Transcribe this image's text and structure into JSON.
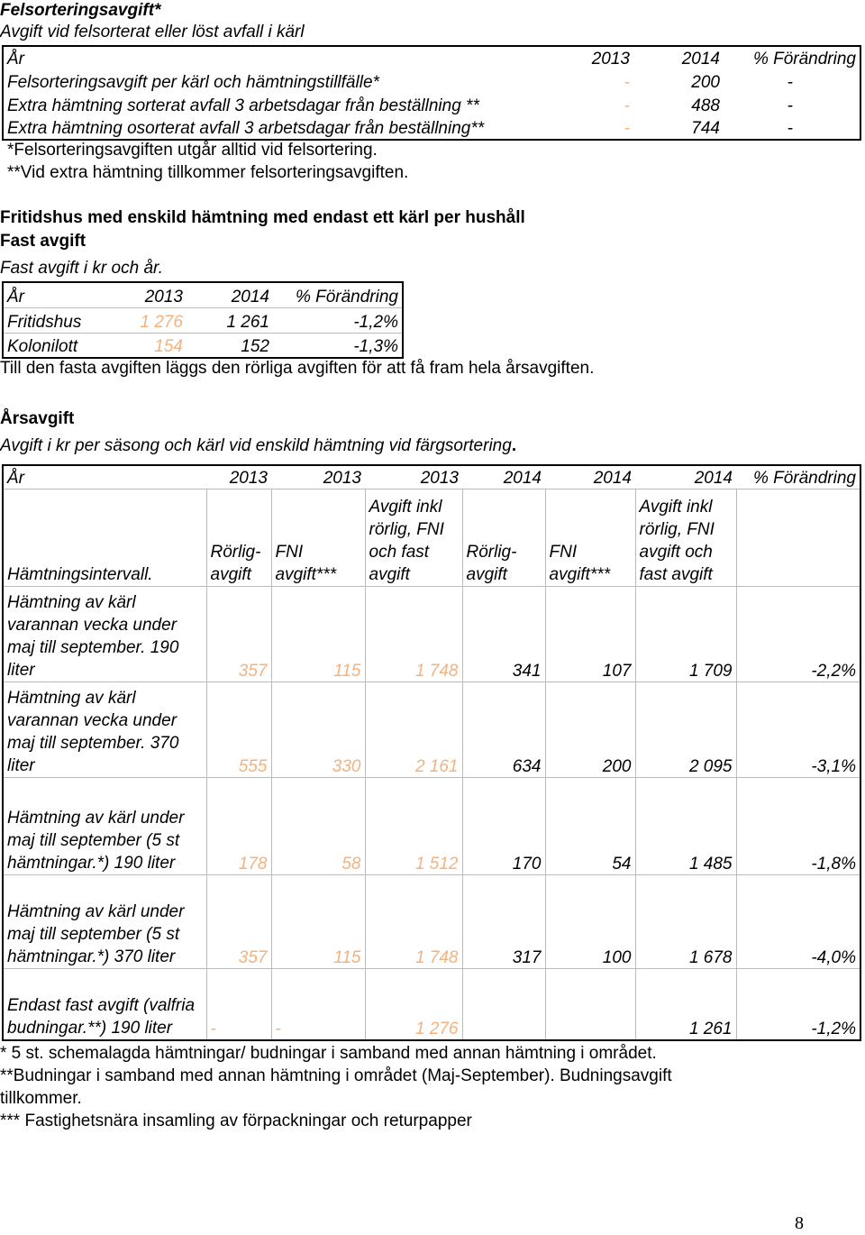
{
  "sec1": {
    "title": "Felsorteringsavgift*",
    "subtitle": "Avgift vid felsorterat eller löst avfall i kärl",
    "headers": [
      "År",
      "2013",
      "2014",
      "% Förändring"
    ],
    "rows": [
      [
        "Felsorteringsavgift per kärl och hämtningstillfälle*",
        "-",
        "200",
        "-"
      ],
      [
        "Extra hämtning sorterat avfall 3 arbetsdagar från beställning **",
        "-",
        "488",
        "-"
      ],
      [
        "Extra hämtning osorterat avfall 3 arbetsdagar från beställning**",
        "-",
        "744",
        "-"
      ]
    ],
    "note1": "*Felsorteringsavgiften utgår alltid vid felsortering.",
    "note2": "**Vid extra hämtning tillkommer felsorteringsavgiften."
  },
  "sec2": {
    "title1": "Fritidshus med enskild hämtning med endast ett kärl per hushåll",
    "title2": "Fast avgift",
    "subtitle": "Fast avgift i kr och år.",
    "headers": [
      "År",
      "2013",
      "2014",
      "% Förändring"
    ],
    "rows": [
      [
        "Fritidshus",
        "1 276",
        "1 261",
        "-1,2%"
      ],
      [
        "Kolonilott",
        "154",
        "152",
        "-1,3%"
      ]
    ],
    "note": "Till den fasta avgiften läggs den rörliga avgiften för att få fram hela årsavgiften."
  },
  "sec3": {
    "title": "Årsavgift",
    "subtitle_main": "Avgift i kr per säsong och kärl vid enskild hämtning vid färgsortering",
    "subtitle_dot": ".",
    "headers": [
      "År",
      "2013",
      "2013",
      "2013",
      "2014",
      "2014",
      "2014",
      "% Förändring"
    ],
    "subheaders": [
      "Hämtningsintervall.",
      "Rörlig- avgift",
      "FNI avgift***",
      "Avgift inkl rörlig, FNI och fast avgift",
      "Rörlig- avgift",
      "FNI avgift***",
      "Avgift inkl rörlig, FNI avgift och fast avgift",
      ""
    ],
    "rows": [
      [
        "Hämtning av kärl varannan vecka under maj till september. 190 liter",
        "357",
        "115",
        "1 748",
        "341",
        "107",
        "1 709",
        "-2,2%"
      ],
      [
        "Hämtning av kärl varannan vecka under maj till september. 370 liter",
        "555",
        "330",
        "2 161",
        "634",
        "200",
        "2 095",
        "-3,1%"
      ],
      [
        "Hämtning av kärl under maj till september (5 st hämtningar.*) 190 liter",
        "178",
        "58",
        "1 512",
        "170",
        "54",
        "1 485",
        "-1,8%"
      ],
      [
        "Hämtning av kärl under maj till september (5 st hämtningar.*) 370 liter",
        "357",
        "115",
        "1 748",
        "317",
        "100",
        "1 678",
        "-4,0%"
      ],
      [
        "Endast fast avgift (valfria budningar.**) 190 liter",
        "-",
        "-",
        "1 276",
        "",
        "",
        "1 261",
        "-1,2%"
      ]
    ],
    "notes": [
      "* 5 st. schemalagda hämtningar/ budningar i samband med annan hämtning i området.",
      "**Budningar i samband med annan hämtning i området (Maj-September).  Budningsavgift",
      "tillkommer.",
      "*** Fastighetsnära insamling av förpackningar och returpapper"
    ]
  },
  "page_number": "8"
}
